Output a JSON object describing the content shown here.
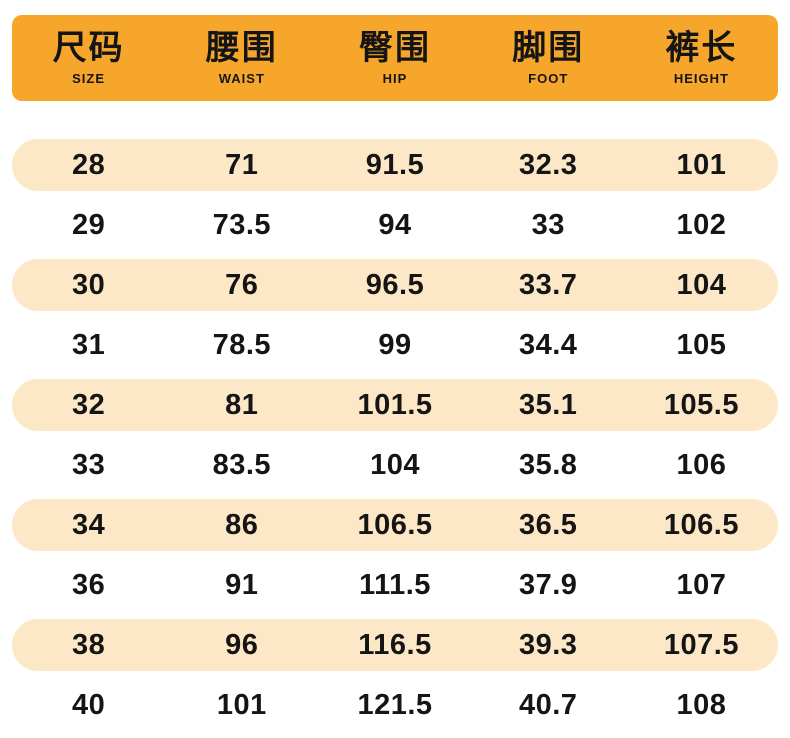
{
  "colors": {
    "header_bg": "#F7A62C",
    "row_alt_bg": "#FCE8C7",
    "text": "#151515"
  },
  "table": {
    "columns": [
      {
        "zh": "尺码",
        "en": "SIZE"
      },
      {
        "zh": "腰围",
        "en": "WAIST"
      },
      {
        "zh": "臀围",
        "en": "HIP"
      },
      {
        "zh": "脚围",
        "en": "FOOT"
      },
      {
        "zh": "裤长",
        "en": "HEIGHT"
      }
    ],
    "rows": [
      [
        "28",
        "71",
        "91.5",
        "32.3",
        "101"
      ],
      [
        "29",
        "73.5",
        "94",
        "33",
        "102"
      ],
      [
        "30",
        "76",
        "96.5",
        "33.7",
        "104"
      ],
      [
        "31",
        "78.5",
        "99",
        "34.4",
        "105"
      ],
      [
        "32",
        "81",
        "101.5",
        "35.1",
        "105.5"
      ],
      [
        "33",
        "83.5",
        "104",
        "35.8",
        "106"
      ],
      [
        "34",
        "86",
        "106.5",
        "36.5",
        "106.5"
      ],
      [
        "36",
        "91",
        "111.5",
        "37.9",
        "107"
      ],
      [
        "38",
        "96",
        "116.5",
        "39.3",
        "107.5"
      ],
      [
        "40",
        "101",
        "121.5",
        "40.7",
        "108"
      ]
    ]
  }
}
